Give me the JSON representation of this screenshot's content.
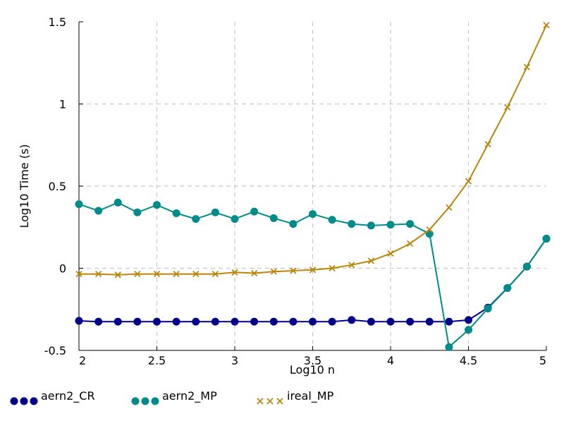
{
  "chart_data": {
    "type": "line",
    "xlabel": "Log10 n",
    "ylabel": "Log10 Time (s)",
    "xlim": [
      2,
      5
    ],
    "ylim": [
      -0.5,
      1.5
    ],
    "x_ticks": [
      "2",
      "2.5",
      "3",
      "3.5",
      "4",
      "4.5",
      "5"
    ],
    "y_ticks": [
      "-0.5",
      "0",
      "0.5",
      "1",
      "1.5"
    ],
    "grid": true,
    "legend_position": "bottom-left",
    "series": [
      {
        "name": "aern2_CR",
        "color": "#00008b",
        "marker": "circle",
        "x": [
          2.0,
          2.125,
          2.25,
          2.375,
          2.5,
          2.625,
          2.75,
          2.875,
          3.0,
          3.125,
          3.25,
          3.375,
          3.5,
          3.625,
          3.75,
          3.875,
          4.0,
          4.125,
          4.25,
          4.375,
          4.5,
          4.625,
          4.75,
          4.875,
          5.0
        ],
        "y": [
          -0.32,
          -0.325,
          -0.325,
          -0.325,
          -0.325,
          -0.325,
          -0.325,
          -0.325,
          -0.325,
          -0.325,
          -0.325,
          -0.325,
          -0.325,
          -0.325,
          -0.315,
          -0.325,
          -0.325,
          -0.325,
          -0.325,
          -0.325,
          -0.315,
          -0.24,
          -0.12,
          0.01,
          0.18
        ]
      },
      {
        "name": "aern2_MP",
        "color": "#008b8b",
        "marker": "circle",
        "x": [
          2.0,
          2.125,
          2.25,
          2.375,
          2.5,
          2.625,
          2.75,
          2.875,
          3.0,
          3.125,
          3.25,
          3.375,
          3.5,
          3.625,
          3.75,
          3.875,
          4.0,
          4.125,
          4.25,
          4.375,
          4.5,
          4.625,
          4.75,
          4.875,
          5.0
        ],
        "y": [
          0.39,
          0.35,
          0.4,
          0.34,
          0.385,
          0.335,
          0.3,
          0.34,
          0.3,
          0.345,
          0.305,
          0.27,
          0.33,
          0.295,
          0.27,
          0.26,
          0.265,
          0.27,
          0.21,
          -0.48,
          -0.375,
          -0.245,
          -0.12,
          0.01,
          0.18
        ]
      },
      {
        "name": "ireal_MP",
        "color": "#b8860b",
        "marker": "x",
        "x": [
          2.0,
          2.125,
          2.25,
          2.375,
          2.5,
          2.625,
          2.75,
          2.875,
          3.0,
          3.125,
          3.25,
          3.375,
          3.5,
          3.625,
          3.75,
          3.875,
          4.0,
          4.125,
          4.25,
          4.375,
          4.5,
          4.625,
          4.75,
          4.875,
          5.0
        ],
        "y": [
          -0.035,
          -0.035,
          -0.04,
          -0.035,
          -0.035,
          -0.035,
          -0.035,
          -0.035,
          -0.025,
          -0.03,
          -0.02,
          -0.015,
          -0.01,
          0.0,
          0.02,
          0.045,
          0.09,
          0.15,
          0.235,
          0.37,
          0.53,
          0.755,
          0.98,
          1.225,
          1.48
        ]
      }
    ]
  }
}
